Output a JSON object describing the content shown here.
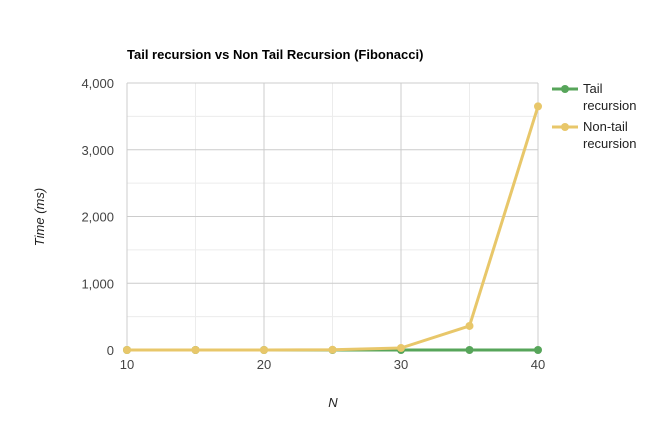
{
  "chart_data": {
    "type": "line",
    "title": "Tail recursion vs Non Tail Recursion (Fibonacci)",
    "xlabel": "N",
    "ylabel": "Time (ms)",
    "x": [
      10,
      15,
      20,
      25,
      30,
      35,
      40
    ],
    "x_ticks": [
      10,
      20,
      30,
      40
    ],
    "x_tick_labels": [
      "10",
      "20",
      "30",
      "40"
    ],
    "xlim": [
      10,
      40
    ],
    "y_ticks": [
      0,
      1000,
      2000,
      3000,
      4000
    ],
    "y_tick_labels": [
      "0",
      "1,000",
      "2,000",
      "3,000",
      "4,000"
    ],
    "ylim": [
      0,
      4000
    ],
    "grid": true,
    "legend_position": "right",
    "series": [
      {
        "name": "Tail recursion",
        "legend_lines": [
          "Tail",
          "recursion"
        ],
        "color": "#57a55a",
        "values": [
          0,
          0,
          0,
          0,
          0,
          0,
          0
        ]
      },
      {
        "name": "Non-tail recursion",
        "legend_lines": [
          "Non-tail",
          "recursion"
        ],
        "color": "#e8c76a",
        "values": [
          0,
          0,
          0,
          3,
          30,
          360,
          3650
        ]
      }
    ]
  }
}
